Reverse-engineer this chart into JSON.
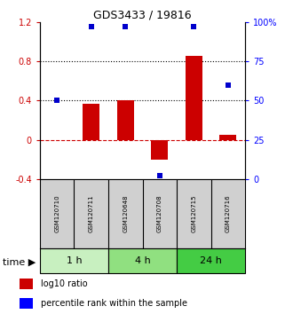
{
  "title": "GDS3433 / 19816",
  "samples": [
    "GSM120710",
    "GSM120711",
    "GSM120648",
    "GSM120708",
    "GSM120715",
    "GSM120716"
  ],
  "log10_ratio": [
    0.0,
    0.37,
    0.4,
    -0.2,
    0.85,
    0.05
  ],
  "percentile_rank": [
    50,
    97,
    97,
    2,
    97,
    60
  ],
  "groups": [
    {
      "label": "1 h",
      "indices": [
        0,
        1
      ],
      "color": "#c8f0c0"
    },
    {
      "label": "4 h",
      "indices": [
        2,
        3
      ],
      "color": "#90e080"
    },
    {
      "label": "24 h",
      "indices": [
        4,
        5
      ],
      "color": "#44cc44"
    }
  ],
  "ylim_left": [
    -0.4,
    1.2
  ],
  "ylim_right": [
    0,
    100
  ],
  "yticks_left": [
    -0.4,
    0.0,
    0.4,
    0.8,
    1.2
  ],
  "yticks_right": [
    0,
    25,
    50,
    75,
    100
  ],
  "ytick_labels_left": [
    "-0.4",
    "0",
    "0.4",
    "0.8",
    "1.2"
  ],
  "ytick_labels_right": [
    "0",
    "25",
    "50",
    "75",
    "100%"
  ],
  "dotted_lines": [
    0.4,
    0.8
  ],
  "dashed_line": 0.0,
  "bar_color": "#cc0000",
  "dot_color": "#0000cc",
  "bar_width": 0.5,
  "sample_box_color": "#d0d0d0",
  "legend_red_label": "log10 ratio",
  "legend_blue_label": "percentile rank within the sample",
  "title_fontsize": 9,
  "tick_fontsize": 7,
  "sample_fontsize": 5,
  "group_fontsize": 8,
  "legend_fontsize": 7
}
